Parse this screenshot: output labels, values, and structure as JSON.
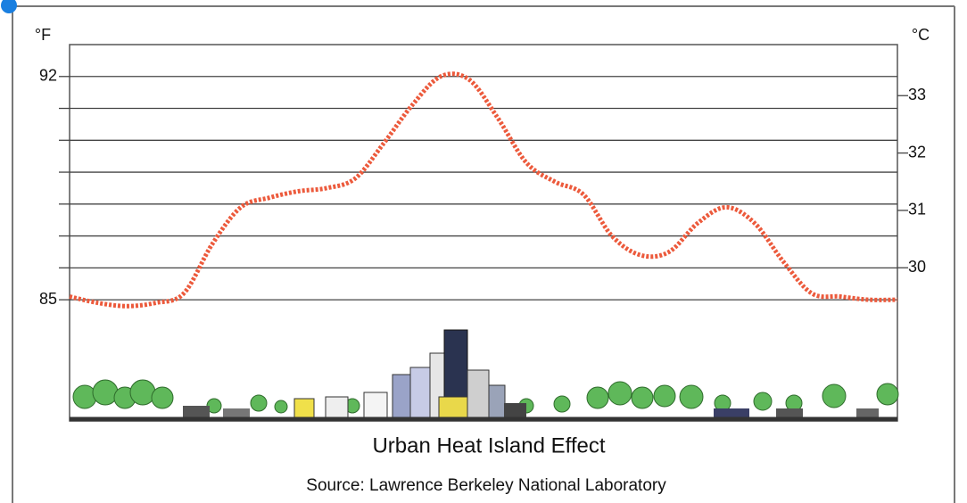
{
  "chart_data": {
    "type": "line",
    "title": "Urban Heat Island Effect",
    "subtitle": "Source:  Lawrence Berkeley National Laboratory",
    "ylabel": "°F",
    "y2label": "°C",
    "ylim": [
      81.2,
      93
    ],
    "yticks": [
      85,
      92
    ],
    "grid_yticks": [
      85,
      86,
      87,
      88,
      89,
      90,
      91,
      92
    ],
    "grid": true,
    "y2lim": [
      27.33,
      33.89
    ],
    "y2ticks": [
      30,
      31,
      32,
      33
    ],
    "series": [
      {
        "color": "#ec5a3c",
        "values": [
          85.1,
          84.9,
          84.8,
          84.9,
          85.2,
          86.75,
          87.9,
          88.2,
          88.4,
          88.5,
          88.8,
          89.9,
          91.1,
          92.0,
          91.9,
          90.7,
          89.3,
          88.7,
          88.3,
          87.0,
          86.4,
          86.5,
          87.4,
          87.9,
          87.4,
          86.2,
          85.2,
          85.1,
          85.0,
          85.0
        ]
      }
    ]
  }
}
